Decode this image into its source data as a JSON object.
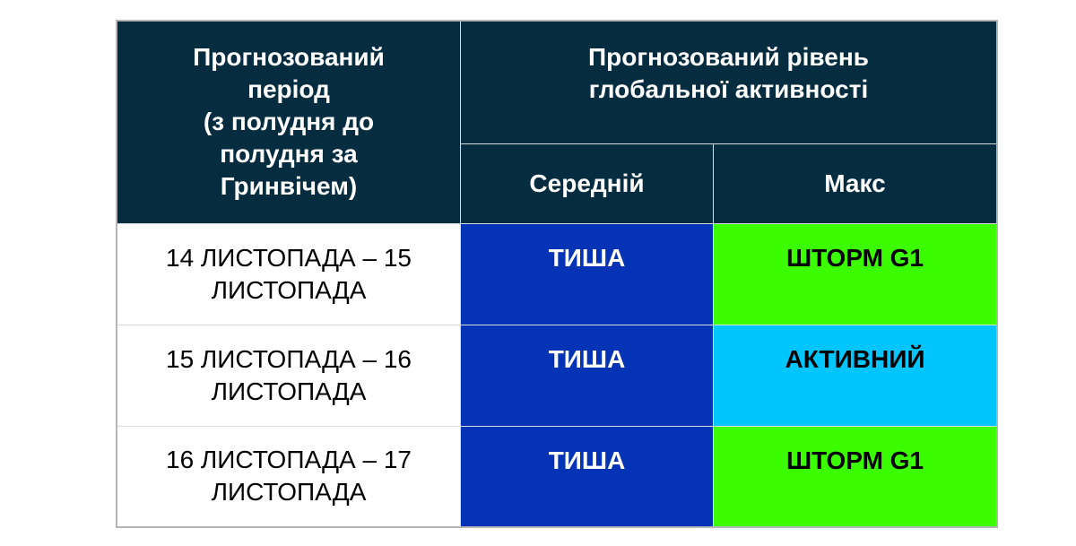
{
  "header": {
    "period": "Прогнозований період (з полудня до полудня за Гринвічем)",
    "period_lines": [
      "Прогнозований",
      "період",
      "(з полудня до",
      "полудня за",
      "Гринвічем)"
    ],
    "level_lines": [
      "Прогнозований рівень",
      "глобальної активності"
    ],
    "average": "Середній",
    "max": "Макс"
  },
  "colors": {
    "header": "#062c40",
    "quiet": "#0533b5",
    "storm": "#3cfc00",
    "active": "#00c5ff"
  },
  "rows": [
    {
      "period_lines": [
        "14 ЛИСТОПАДА – 15",
        "ЛИСТОПАДА"
      ],
      "average": "ТИША",
      "max": "ШТОРМ G1",
      "max_color": "#3cfc00"
    },
    {
      "period_lines": [
        "15 ЛИСТОПАДА – 16",
        "ЛИСТОПАДА"
      ],
      "average": "ТИША",
      "max": "АКТИВНИЙ",
      "max_color": "#00c5ff"
    },
    {
      "period_lines": [
        "16 ЛИСТОПАДА – 17",
        "ЛИСТОПАДА"
      ],
      "average": "ТИША",
      "max": "ШТОРМ G1",
      "max_color": "#3cfc00"
    }
  ]
}
